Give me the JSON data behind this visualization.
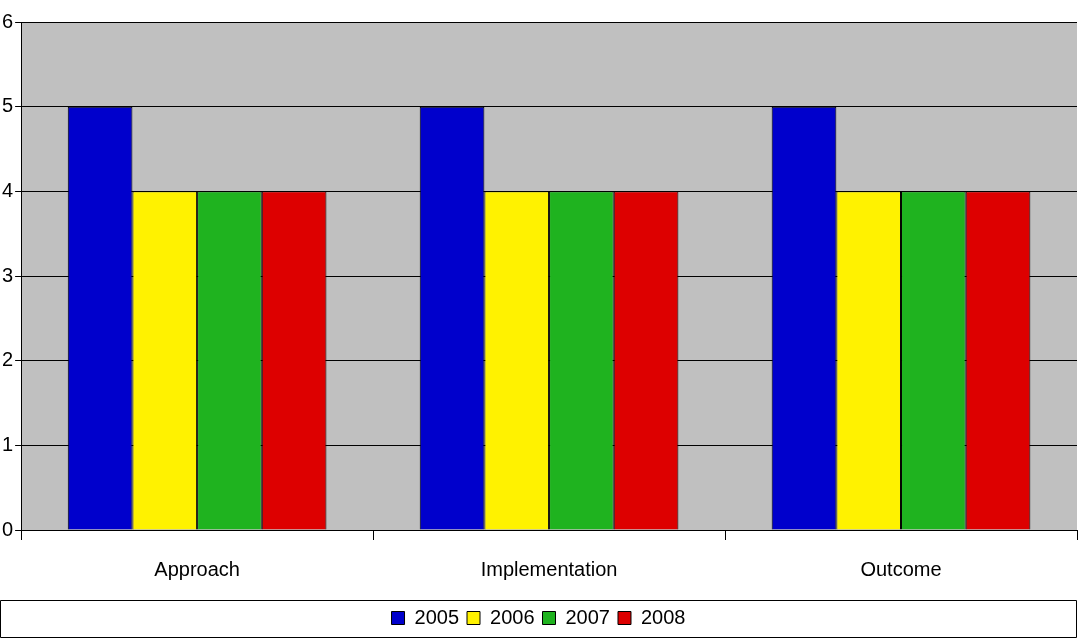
{
  "chart_data": {
    "type": "bar",
    "categories": [
      "Approach",
      "Implementation",
      "Outcome"
    ],
    "series": [
      {
        "name": "2005",
        "color": "#0000cc",
        "values": [
          5,
          5,
          5
        ]
      },
      {
        "name": "2006",
        "color": "#fff200",
        "values": [
          4,
          4,
          4
        ]
      },
      {
        "name": "2007",
        "color": "#1fb31f",
        "values": [
          4,
          4,
          4
        ]
      },
      {
        "name": "2008",
        "color": "#dd0000",
        "values": [
          4,
          4,
          4
        ]
      }
    ],
    "ylim": [
      0,
      6
    ],
    "yticks": [
      0,
      1,
      2,
      3,
      4,
      5,
      6
    ],
    "grid": "y",
    "legend": "bottom"
  }
}
